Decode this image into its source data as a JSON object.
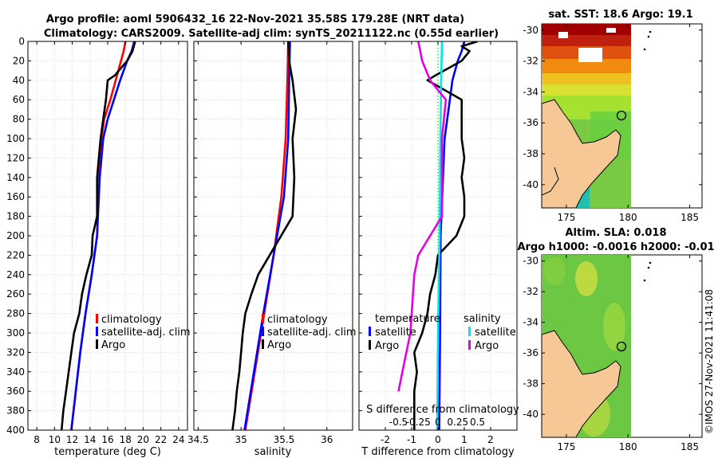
{
  "header": {
    "title_line1": "Argo profile: aoml 5906432_16 22-Nov-2021 35.58S 179.28E (NRT data)",
    "title_line2": "Climatology: CARS2009. Satellite-adj clim: synTS_20211122.nc (0.55d earlier)"
  },
  "sst_map": {
    "title": "sat. SST: 18.6 Argo: 19.1",
    "lat_ticks": [
      "-30",
      "-32",
      "-34",
      "-36",
      "-38",
      "-40"
    ],
    "lon_ticks": [
      "175",
      "180",
      "185"
    ]
  },
  "sla_map": {
    "title_line1": "Altim. SLA: 0.018",
    "title_line2": "Argo h1000: -0.0016 h2000: -0.01",
    "lat_ticks": [
      "-30",
      "-32",
      "-34",
      "-36",
      "-38",
      "-40"
    ],
    "lon_ticks": [
      "175",
      "180",
      "185"
    ]
  },
  "credit": "©IMOS 27-Nov-2021 11:41:08",
  "colors": {
    "climatology": "#ff0000",
    "satellite": "#0000ff",
    "argo": "#000000",
    "salinity_sat": "#00e5ee",
    "salinity_argo": "#e600e6",
    "land": "#f5c896"
  },
  "chart_data": [
    {
      "type": "line",
      "id": "temperature",
      "xlabel": "temperature (deg C)",
      "ylabel": "",
      "xlim": [
        7,
        25
      ],
      "ylim": [
        400,
        0
      ],
      "xticks": [
        "8",
        "10",
        "12",
        "14",
        "16",
        "18",
        "20",
        "22",
        "24"
      ],
      "yticks": [
        "0",
        "20",
        "40",
        "60",
        "80",
        "100",
        "120",
        "140",
        "160",
        "180",
        "200",
        "220",
        "240",
        "260",
        "280",
        "300",
        "320",
        "340",
        "360",
        "380",
        "400"
      ],
      "legend": [
        "climatology",
        "satellite-adj. clim",
        "Argo"
      ],
      "series": [
        {
          "name": "climatology",
          "color": "#ff0000",
          "depth": [
            0,
            10,
            20,
            40,
            60,
            80,
            100,
            140,
            200,
            240,
            280,
            320,
            360,
            400
          ],
          "values": [
            18.0,
            17.8,
            17.5,
            16.9,
            16.3,
            15.6,
            15.3,
            15.0,
            14.8,
            14.2,
            13.5,
            12.9,
            12.4,
            11.9
          ]
        },
        {
          "name": "satellite-adj. clim",
          "color": "#0000ff",
          "depth": [
            0,
            10,
            20,
            40,
            60,
            80,
            100,
            140,
            200,
            240,
            280,
            320,
            360,
            400
          ],
          "values": [
            19.0,
            18.7,
            18.2,
            17.4,
            16.7,
            16.0,
            15.5,
            15.1,
            14.8,
            14.2,
            13.5,
            12.9,
            12.4,
            11.9
          ]
        },
        {
          "name": "Argo",
          "color": "#000000",
          "depth": [
            0,
            10,
            20,
            35,
            40,
            60,
            80,
            100,
            140,
            180,
            200,
            220,
            240,
            260,
            280,
            300,
            320,
            340,
            360,
            380,
            400
          ],
          "values": [
            19.1,
            18.8,
            18.2,
            16.8,
            16.0,
            15.8,
            15.5,
            15.2,
            14.8,
            14.8,
            14.3,
            14.2,
            13.6,
            13.1,
            12.8,
            12.2,
            11.9,
            11.6,
            11.3,
            11.0,
            10.8
          ]
        }
      ]
    },
    {
      "type": "line",
      "id": "salinity",
      "xlabel": "salinity",
      "ylabel": "",
      "xlim": [
        34.45,
        36.3
      ],
      "ylim": [
        400,
        0
      ],
      "xticks": [
        "34.5",
        "35",
        "35.5",
        "36"
      ],
      "legend": [
        "climatology",
        "satellite-adj. clim",
        "Argo"
      ],
      "series": [
        {
          "name": "climatology",
          "color": "#ff0000",
          "depth": [
            0,
            40,
            100,
            160,
            220,
            280,
            340,
            400
          ],
          "values": [
            35.55,
            35.54,
            35.52,
            35.47,
            35.38,
            35.27,
            35.16,
            35.05
          ]
        },
        {
          "name": "satellite-adj. clim",
          "color": "#0000ff",
          "depth": [
            0,
            40,
            100,
            160,
            220,
            280,
            340,
            400
          ],
          "values": [
            35.57,
            35.56,
            35.55,
            35.5,
            35.38,
            35.26,
            35.15,
            35.04
          ]
        },
        {
          "name": "Argo",
          "color": "#000000",
          "depth": [
            0,
            20,
            40,
            70,
            100,
            140,
            180,
            210,
            240,
            260,
            280,
            300,
            320,
            340,
            360,
            380,
            400
          ],
          "values": [
            35.55,
            35.56,
            35.6,
            35.64,
            35.6,
            35.62,
            35.6,
            35.4,
            35.2,
            35.12,
            35.05,
            35.02,
            35.0,
            34.98,
            34.95,
            34.93,
            34.9
          ]
        }
      ]
    },
    {
      "type": "line",
      "id": "difference",
      "xlabel": "T difference from climatology",
      "top_label": "S difference from climatology",
      "xlim": [
        -3.0,
        3.0
      ],
      "ylim": [
        400,
        0
      ],
      "xticks": [
        "-2",
        "-1",
        "0",
        "1",
        "2"
      ],
      "top_xticks": [
        "-0.5",
        "-0.25",
        "0",
        "0.25",
        "0.5"
      ],
      "legend_temperature_title": "temperature",
      "legend_salinity_title": "salinity",
      "legend_temperature": [
        "satellite",
        "Argo"
      ],
      "legend_salinity": [
        "satellite",
        "Argo"
      ],
      "series": [
        {
          "name": "temperature satellite",
          "color": "#0000ff",
          "depth": [
            0,
            10,
            20,
            40,
            60,
            100,
            200,
            300,
            400
          ],
          "values": [
            1.0,
            0.9,
            0.75,
            0.55,
            0.45,
            0.25,
            0.1,
            0.08,
            0.05
          ]
        },
        {
          "name": "temperature Argo",
          "color": "#000000",
          "depth": [
            0,
            5,
            10,
            20,
            35,
            40,
            60,
            80,
            100,
            120,
            140,
            160,
            180,
            200,
            220,
            240,
            260,
            280,
            300,
            320,
            340,
            360,
            380,
            400
          ],
          "values": [
            1.5,
            0.9,
            1.2,
            0.9,
            -0.1,
            -0.4,
            0.9,
            0.9,
            0.9,
            1.0,
            0.9,
            1.0,
            1.0,
            0.7,
            0.0,
            -0.1,
            -0.3,
            -0.4,
            -0.6,
            -0.9,
            -0.8,
            -0.9,
            -0.9,
            -0.9
          ]
        },
        {
          "name": "salinity satellite",
          "color": "#00e5ee",
          "depth": [
            0,
            40,
            100,
            200,
            300,
            400
          ],
          "values": [
            0.05,
            0.04,
            0.03,
            0.02,
            0.0,
            -0.01
          ]
        },
        {
          "name": "salinity Argo",
          "color": "#e600e6",
          "depth": [
            0,
            20,
            40,
            60,
            100,
            180,
            200,
            220,
            240,
            300,
            340,
            360
          ],
          "values": [
            -0.25,
            -0.2,
            -0.1,
            0.1,
            0.05,
            0.05,
            -0.1,
            -0.25,
            -0.3,
            -0.35,
            -0.45,
            -0.5
          ]
        }
      ]
    }
  ]
}
